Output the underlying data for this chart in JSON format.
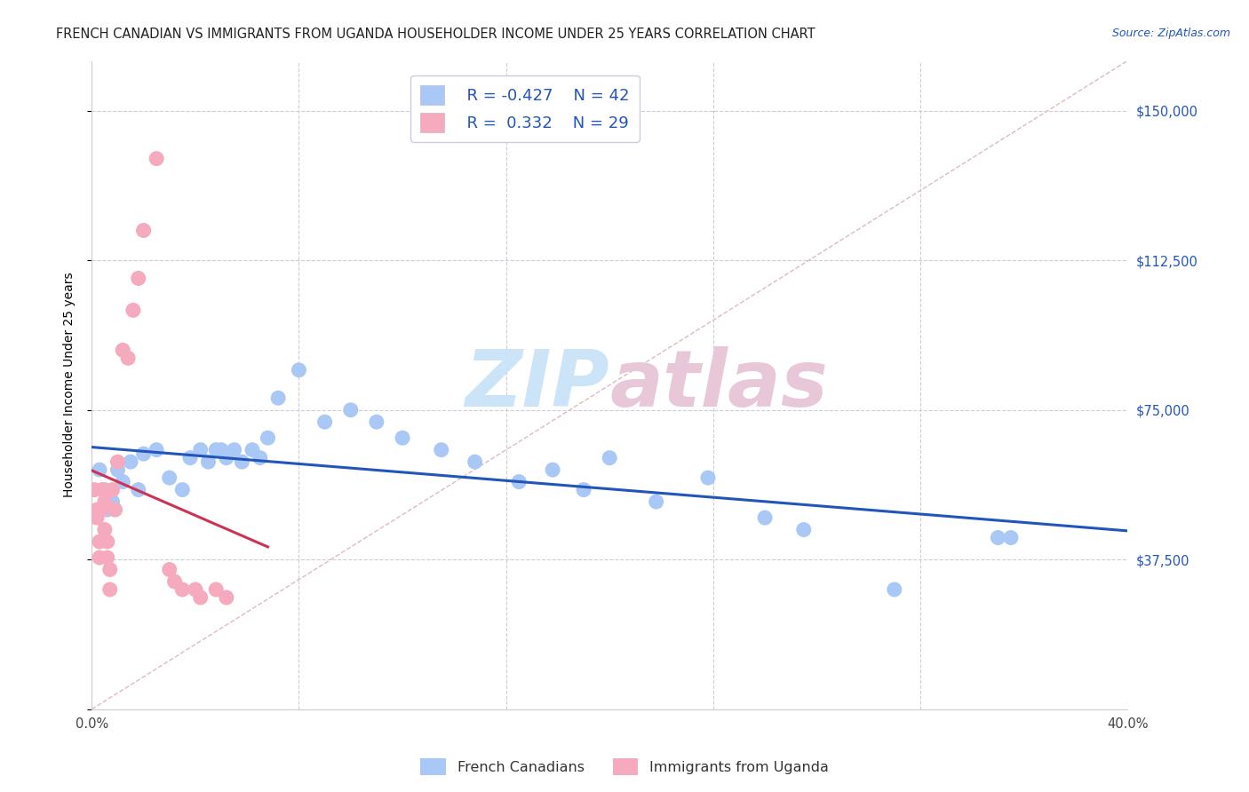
{
  "title": "FRENCH CANADIAN VS IMMIGRANTS FROM UGANDA HOUSEHOLDER INCOME UNDER 25 YEARS CORRELATION CHART",
  "source": "Source: ZipAtlas.com",
  "ylabel": "Householder Income Under 25 years",
  "xlim": [
    0.0,
    0.4
  ],
  "ylim": [
    0,
    162500
  ],
  "yticks": [
    0,
    37500,
    75000,
    112500,
    150000
  ],
  "xticks": [
    0.0,
    0.08,
    0.16,
    0.24,
    0.32,
    0.4
  ],
  "legend1_r": "-0.427",
  "legend1_n": "42",
  "legend2_r": "0.332",
  "legend2_n": "29",
  "blue_color": "#aac8f5",
  "pink_color": "#f5aabe",
  "blue_line_color": "#2255bb",
  "pink_line_color": "#cc3355",
  "diag_line_color": "#ddbbbb",
  "watermark_color": "#cce4f7",
  "background_color": "#ffffff",
  "grid_color": "#ccccdd",
  "blue_scatter_x": [
    0.003,
    0.005,
    0.006,
    0.008,
    0.01,
    0.012,
    0.015,
    0.018,
    0.02,
    0.025,
    0.03,
    0.035,
    0.038,
    0.042,
    0.045,
    0.048,
    0.05,
    0.052,
    0.055,
    0.058,
    0.062,
    0.065,
    0.068,
    0.072,
    0.08,
    0.09,
    0.1,
    0.11,
    0.12,
    0.135,
    0.148,
    0.165,
    0.178,
    0.19,
    0.2,
    0.218,
    0.238,
    0.26,
    0.275,
    0.31,
    0.35,
    0.355
  ],
  "blue_scatter_y": [
    60000,
    55000,
    50000,
    52000,
    60000,
    57000,
    62000,
    55000,
    64000,
    65000,
    58000,
    55000,
    63000,
    65000,
    62000,
    65000,
    65000,
    63000,
    65000,
    62000,
    65000,
    63000,
    68000,
    78000,
    85000,
    72000,
    75000,
    72000,
    68000,
    65000,
    62000,
    57000,
    60000,
    55000,
    63000,
    52000,
    58000,
    48000,
    45000,
    30000,
    43000,
    43000
  ],
  "pink_scatter_x": [
    0.001,
    0.002,
    0.002,
    0.003,
    0.003,
    0.004,
    0.004,
    0.005,
    0.005,
    0.006,
    0.006,
    0.007,
    0.007,
    0.008,
    0.009,
    0.01,
    0.012,
    0.014,
    0.016,
    0.018,
    0.02,
    0.025,
    0.03,
    0.032,
    0.035,
    0.04,
    0.042,
    0.048,
    0.052
  ],
  "pink_scatter_y": [
    55000,
    50000,
    48000,
    42000,
    38000,
    55000,
    50000,
    45000,
    52000,
    42000,
    38000,
    35000,
    30000,
    55000,
    50000,
    62000,
    90000,
    88000,
    100000,
    108000,
    120000,
    138000,
    35000,
    32000,
    30000,
    30000,
    28000,
    30000,
    28000
  ],
  "pink_line_x0": 0.0,
  "pink_line_x1": 0.068,
  "blue_line_x0": 0.0,
  "blue_line_x1": 0.4
}
